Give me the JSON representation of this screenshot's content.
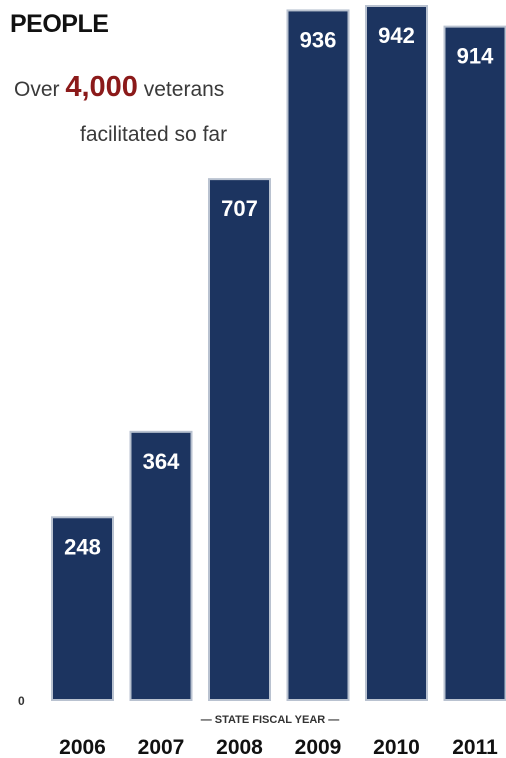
{
  "header": {
    "title": "PEOPLE",
    "subtitle_prefix": "Over ",
    "subtitle_highlight": "4,000",
    "subtitle_suffix": " veterans",
    "subtitle_line2": "facilitated so far"
  },
  "colors": {
    "bar": "#1c3460",
    "bar_edge": "#b9c2d0",
    "highlight": "#8b1a1a"
  },
  "chart_data": {
    "type": "bar",
    "title": "PEOPLE",
    "xlabel": "— STATE FISCAL YEAR —",
    "ylabel": "",
    "categories": [
      "2006",
      "2007",
      "2008",
      "2009",
      "2010",
      "2011"
    ],
    "values": [
      248,
      364,
      707,
      936,
      942,
      914
    ],
    "data_labels": [
      "248",
      "364",
      "707",
      "936",
      "942",
      "914"
    ],
    "ylim": [
      0,
      942
    ],
    "y_tick_labels": [
      "0"
    ],
    "grid": false,
    "legend": "none"
  }
}
